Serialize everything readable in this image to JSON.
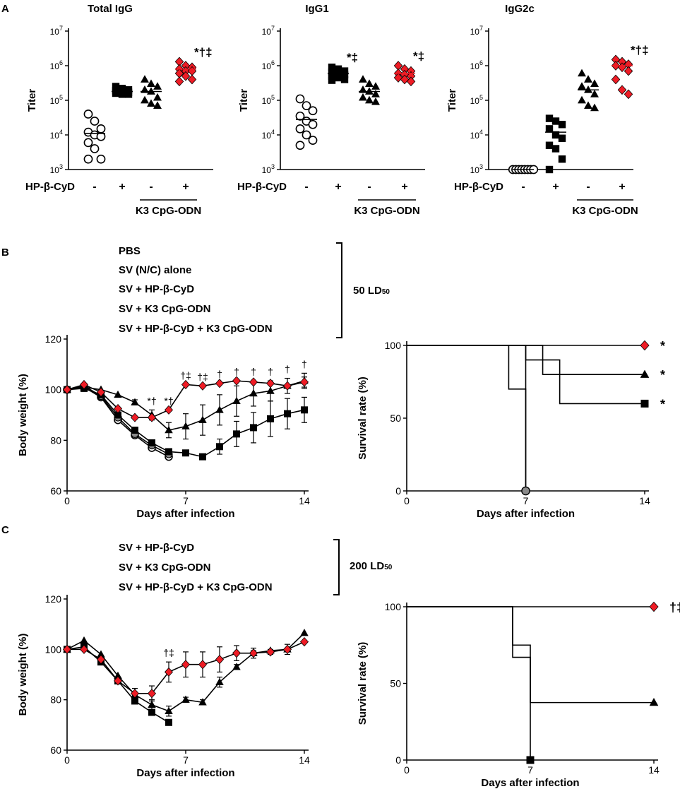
{
  "panels": {
    "A": "A",
    "B": "B",
    "C": "C"
  },
  "shared": {
    "titer_label": "Titer",
    "treat_label": "HP-β-CyD",
    "adj_label": "K3 CpG-ODN",
    "minus": "-",
    "plus": "+",
    "exp_base": "10",
    "exps": [
      "3",
      "4",
      "5",
      "6",
      "7"
    ],
    "bw_label": "Body weight (%)",
    "surv_label": "Survival rate (%)",
    "days_label": "Days after infection"
  },
  "legendB": {
    "items": [
      "PBS",
      "SV (N/C) alone",
      "SV + HP-β-CyD",
      "SV + K3 CpG-ODN",
      "SV + HP-β-CyD + K3 CpG-ODN"
    ],
    "dose": "50 LD",
    "dose_sub": "50"
  },
  "legendC": {
    "items": [
      "SV + HP-β-CyD",
      "SV + K3 CpG-ODN",
      "SV + HP-β-CyD + K3 CpG-ODN"
    ],
    "dose": "200 LD",
    "dose_sub": "50"
  },
  "chart_data": [
    {
      "id": "A1",
      "type": "scatter",
      "title": "Total IgG",
      "ylabel": "Titer",
      "yscale": "log",
      "ylim": [
        1000,
        10000000
      ],
      "groups": [
        {
          "treat": "-",
          "marker": "open-circle",
          "color": "#ffffff",
          "values": [
            40000,
            25000,
            15000,
            12000,
            10000,
            9000,
            6000,
            4000,
            2000,
            2000
          ],
          "mean": 11000
        },
        {
          "treat": "+",
          "marker": "square",
          "color": "#000000",
          "values": [
            250000,
            220000,
            200000,
            190000,
            180000,
            170000,
            160000,
            150000,
            150000
          ],
          "mean": 180000
        },
        {
          "treat": "-",
          "marker": "triangle",
          "color": "#000000",
          "values": [
            400000,
            300000,
            250000,
            200000,
            180000,
            120000,
            100000,
            80000,
            70000
          ],
          "mean": 180000
        },
        {
          "treat": "+",
          "marker": "diamond",
          "color": "#ee1c25",
          "values": [
            1300000,
            1000000,
            900000,
            800000,
            700000,
            700000,
            600000,
            500000,
            400000,
            350000
          ],
          "mean": 800000,
          "annotation": "*†‡"
        }
      ]
    },
    {
      "id": "A2",
      "type": "scatter",
      "title": "IgG1",
      "ylabel": "Titer",
      "yscale": "log",
      "ylim": [
        1000,
        10000000
      ],
      "groups": [
        {
          "treat": "-",
          "marker": "open-circle",
          "color": "#ffffff",
          "values": [
            110000,
            70000,
            50000,
            35000,
            25000,
            20000,
            15000,
            10000,
            7000,
            5000
          ],
          "mean": 28000
        },
        {
          "treat": "+",
          "marker": "square",
          "color": "#000000",
          "values": [
            900000,
            800000,
            700000,
            650000,
            600000,
            550000,
            500000,
            450000,
            400000,
            380000
          ],
          "mean": 600000,
          "annotation": "*‡"
        },
        {
          "treat": "-",
          "marker": "triangle",
          "color": "#000000",
          "values": [
            400000,
            300000,
            250000,
            200000,
            180000,
            150000,
            120000,
            100000,
            90000
          ],
          "mean": 180000
        },
        {
          "treat": "+",
          "marker": "diamond",
          "color": "#ee1c25",
          "values": [
            1000000,
            800000,
            700000,
            600000,
            550000,
            500000,
            450000,
            400000,
            350000
          ],
          "mean": 600000,
          "annotation": "*‡"
        }
      ]
    },
    {
      "id": "A3",
      "type": "scatter",
      "title": "IgG2c",
      "ylabel": "Titer",
      "yscale": "log",
      "ylim": [
        1000,
        10000000
      ],
      "groups": [
        {
          "treat": "-",
          "marker": "open-circle",
          "color": "#ffffff",
          "values": [
            1000,
            1000,
            1000,
            1000,
            1000,
            1000,
            1000,
            1000
          ],
          "mean": 1000
        },
        {
          "treat": "+",
          "marker": "square",
          "color": "#000000",
          "values": [
            30000,
            25000,
            20000,
            15000,
            10000,
            8000,
            5000,
            4000,
            2000,
            1000
          ],
          "mean": 12000
        },
        {
          "treat": "-",
          "marker": "triangle",
          "color": "#000000",
          "values": [
            600000,
            400000,
            300000,
            250000,
            200000,
            150000,
            100000,
            70000,
            60000
          ],
          "mean": 200000
        },
        {
          "treat": "+",
          "marker": "diamond",
          "color": "#ee1c25",
          "values": [
            1500000,
            1300000,
            1100000,
            1000000,
            900000,
            700000,
            400000,
            200000,
            150000
          ],
          "mean": 1000000,
          "annotation": "*†‡"
        }
      ]
    },
    {
      "id": "B1",
      "type": "line",
      "xlabel": "Days after infection",
      "ylabel": "Body weight (%)",
      "xlim": [
        0,
        14
      ],
      "ylim": [
        60,
        120
      ],
      "xticks": [
        0,
        7,
        14
      ],
      "yticks": [
        60,
        80,
        100,
        120
      ],
      "series": [
        {
          "name": "PBS",
          "marker": "open-circle",
          "color": "#ffffff",
          "x": [
            0,
            1,
            2,
            3,
            4,
            5,
            6
          ],
          "y": [
            100,
            101,
            97,
            88,
            82,
            77,
            73.5
          ]
        },
        {
          "name": "SV (N/C) alone",
          "marker": "gray-circle",
          "color": "#888888",
          "x": [
            0,
            1,
            2,
            3,
            4,
            5,
            6
          ],
          "y": [
            100,
            101.5,
            97.5,
            89,
            82.5,
            78,
            74.5
          ]
        },
        {
          "name": "SV + HP-β-CyD",
          "marker": "square",
          "color": "#000000",
          "x": [
            0,
            1,
            2,
            3,
            4,
            5,
            6,
            7,
            8,
            9,
            10,
            11,
            12,
            13,
            14
          ],
          "y": [
            100,
            100.5,
            98,
            90,
            84,
            79,
            75.5,
            75,
            73.5,
            77.5,
            82.5,
            85,
            88.5,
            90.5,
            92
          ],
          "err": [
            0,
            0,
            0,
            0,
            0,
            0,
            0,
            1,
            1,
            3,
            5,
            6,
            7,
            6,
            5
          ]
        },
        {
          "name": "SV + K3 CpG-ODN",
          "marker": "triangle",
          "color": "#000000",
          "x": [
            0,
            1,
            2,
            3,
            4,
            5,
            6,
            7,
            8,
            9,
            10,
            11,
            12,
            13,
            14
          ],
          "y": [
            100,
            101,
            100,
            98,
            95,
            90,
            84,
            85.5,
            88,
            92,
            95.5,
            98.5,
            99.5,
            101.5,
            103.5
          ],
          "err": [
            0,
            0,
            0,
            0,
            1,
            2,
            3,
            5,
            6,
            6,
            6,
            5,
            4,
            3,
            3
          ]
        },
        {
          "name": "SV + HP-β-CyD + K3 CpG-ODN",
          "marker": "diamond",
          "color": "#ee1c25",
          "x": [
            0,
            1,
            2,
            3,
            4,
            5,
            6,
            7,
            8,
            9,
            10,
            11,
            12,
            13,
            14
          ],
          "y": [
            100,
            102,
            99,
            92.5,
            89,
            89,
            92,
            102,
            101.5,
            102.5,
            103.5,
            103,
            102.5,
            101.5,
            103
          ],
          "err": [
            0,
            0,
            0,
            0,
            0,
            0,
            0,
            0,
            0,
            0,
            0,
            0,
            0,
            0,
            2
          ]
        }
      ],
      "annotations": [
        {
          "x": 5,
          "text": "*†"
        },
        {
          "x": 6,
          "text": "*†"
        },
        {
          "x": 7,
          "text": "†‡"
        },
        {
          "x": 8,
          "text": "†‡"
        },
        {
          "x": 9,
          "text": "†"
        },
        {
          "x": 10,
          "text": "†"
        },
        {
          "x": 11,
          "text": "†"
        },
        {
          "x": 12,
          "text": "†"
        },
        {
          "x": 13,
          "text": "†"
        },
        {
          "x": 14,
          "text": "†"
        }
      ]
    },
    {
      "id": "B2",
      "type": "line",
      "subtype": "survival",
      "xlabel": "Days after infection",
      "ylabel": "Survival rate (%)",
      "xlim": [
        0,
        14
      ],
      "ylim": [
        0,
        100
      ],
      "xticks": [
        0,
        7,
        14
      ],
      "yticks": [
        0,
        50,
        100
      ],
      "series": [
        {
          "name": "PBS",
          "marker": "open-circle",
          "x": [
            0,
            7,
            7
          ],
          "y": [
            100,
            100,
            0
          ]
        },
        {
          "name": "SV (N/C) alone",
          "marker": "gray-circle",
          "x": [
            0,
            6,
            6,
            7,
            7
          ],
          "y": [
            100,
            100,
            70,
            70,
            0
          ]
        },
        {
          "name": "SV + HP-β-CyD",
          "marker": "square",
          "x": [
            0,
            7,
            7,
            9,
            9,
            14
          ],
          "y": [
            100,
            100,
            90,
            90,
            60,
            60
          ]
        },
        {
          "name": "SV + K3 CpG-ODN",
          "marker": "triangle",
          "x": [
            0,
            8,
            8,
            14
          ],
          "y": [
            100,
            100,
            80,
            80
          ]
        },
        {
          "name": "SV + HP-β-CyD + K3 CpG-ODN",
          "marker": "diamond",
          "x": [
            0,
            14
          ],
          "y": [
            100,
            100
          ]
        }
      ],
      "annotations": [
        {
          "y": 100,
          "text": "*"
        },
        {
          "y": 80,
          "text": "*"
        },
        {
          "y": 60,
          "text": "*"
        }
      ]
    },
    {
      "id": "C1",
      "type": "line",
      "xlabel": "Days after infection",
      "ylabel": "Body weight (%)",
      "xlim": [
        0,
        14
      ],
      "ylim": [
        60,
        120
      ],
      "xticks": [
        0,
        7,
        14
      ],
      "yticks": [
        60,
        80,
        100,
        120
      ],
      "series": [
        {
          "name": "SV + HP-β-CyD",
          "marker": "square",
          "color": "#000000",
          "x": [
            0,
            1,
            2,
            3,
            4,
            5,
            6
          ],
          "y": [
            100,
            101,
            95,
            87.5,
            79.5,
            75,
            71
          ]
        },
        {
          "name": "SV + K3 CpG-ODN",
          "marker": "triangle",
          "color": "#000000",
          "x": [
            0,
            1,
            2,
            3,
            4,
            5,
            6,
            7,
            8,
            9,
            10,
            11,
            12,
            13,
            14
          ],
          "y": [
            100,
            103.5,
            98,
            89.5,
            82,
            78,
            75.5,
            80,
            79,
            87,
            93,
            98.5,
            99.5,
            100,
            106.5
          ],
          "err": [
            0,
            0,
            0,
            0,
            0,
            2,
            2,
            1,
            1,
            2,
            1,
            1,
            0,
            0,
            0
          ]
        },
        {
          "name": "SV + HP-β-CyD + K3 CpG-ODN",
          "marker": "diamond",
          "color": "#ee1c25",
          "x": [
            0,
            1,
            2,
            3,
            4,
            5,
            6,
            7,
            8,
            9,
            10,
            11,
            12,
            13,
            14
          ],
          "y": [
            100,
            100,
            96,
            87.5,
            82.5,
            82.5,
            91,
            94,
            94,
            96,
            98.5,
            98.5,
            99,
            100,
            103
          ],
          "err": [
            0,
            0,
            0,
            0,
            2,
            3,
            4,
            5,
            5,
            5,
            3,
            2,
            1,
            2,
            0
          ]
        }
      ],
      "annotations": [
        {
          "x": 6,
          "text": "†‡"
        }
      ]
    },
    {
      "id": "C2",
      "type": "line",
      "subtype": "survival",
      "xlabel": "Days after infection",
      "ylabel": "Survival rate (%)",
      "xlim": [
        0,
        14
      ],
      "ylim": [
        0,
        100
      ],
      "xticks": [
        0,
        7,
        14
      ],
      "yticks": [
        0,
        50,
        100
      ],
      "series": [
        {
          "name": "SV + HP-β-CyD",
          "marker": "square",
          "x": [
            0,
            6,
            6,
            7,
            7
          ],
          "y": [
            100,
            100,
            67,
            67,
            0
          ]
        },
        {
          "name": "SV + K3 CpG-ODN",
          "marker": "triangle",
          "x": [
            0,
            6,
            6,
            7,
            7,
            14
          ],
          "y": [
            100,
            100,
            75,
            75,
            37.5,
            37.5
          ]
        },
        {
          "name": "SV + HP-β-CyD + K3 CpG-ODN",
          "marker": "diamond",
          "x": [
            0,
            14
          ],
          "y": [
            100,
            100
          ]
        }
      ],
      "annotations": [
        {
          "y": 100,
          "text": "†‡"
        }
      ]
    }
  ]
}
